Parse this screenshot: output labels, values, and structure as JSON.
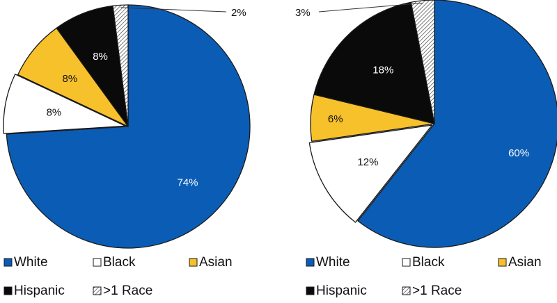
{
  "colors": {
    "White": "#0b5cb5",
    "Black": "#ffffff",
    "Asian": "#f7c12b",
    "Hispanic": "#0a0a0a",
    ">1 Race": "hatch",
    "outline": "#1a1a1a",
    "text": "#111111"
  },
  "chart_data": [
    {
      "type": "pie",
      "title": "",
      "categories": [
        "White",
        "Black",
        "Asian",
        "Hispanic",
        ">1 Race"
      ],
      "values": [
        74,
        8,
        8,
        8,
        2
      ],
      "labels": [
        "74%",
        "8%",
        "8%",
        "8%",
        "2%"
      ],
      "legend": [
        "White",
        "Black",
        "Asian",
        "Hispanic",
        ">1 Race"
      ],
      "legend_position": "bottom"
    },
    {
      "type": "pie",
      "title": "",
      "categories": [
        "White",
        "Black",
        "Asian",
        "Hispanic",
        ">1 Race"
      ],
      "values": [
        60,
        12,
        6,
        18,
        3
      ],
      "labels": [
        "60%",
        "12%",
        "6%",
        "18%",
        "3%"
      ],
      "legend": [
        "White",
        "Black",
        "Asian",
        "Hispanic",
        ">1 Race"
      ],
      "legend_position": "bottom"
    }
  ]
}
